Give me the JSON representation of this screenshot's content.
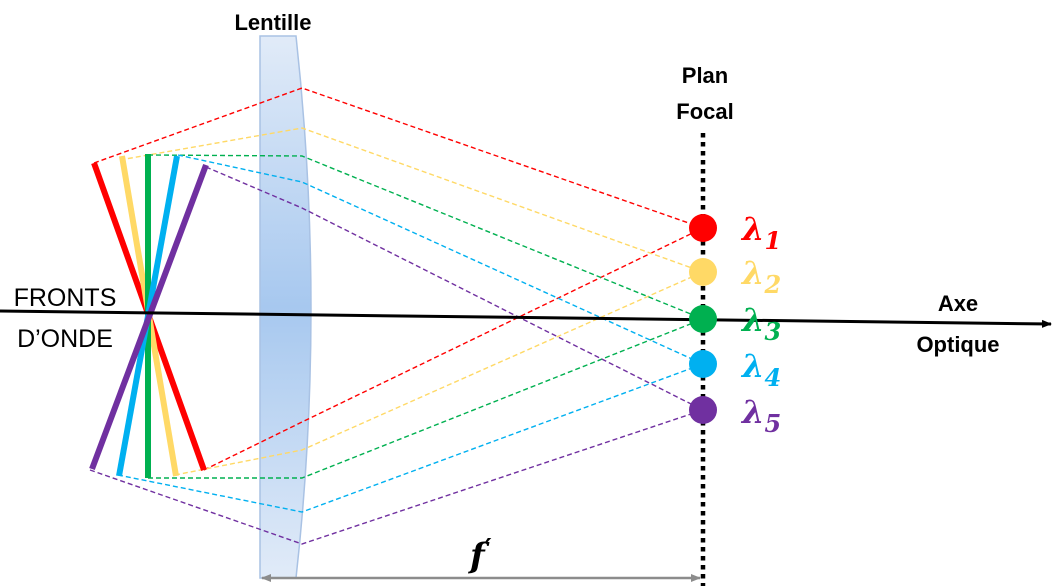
{
  "labels": {
    "lens": "Lentille",
    "focal_plane_line1": "Plan",
    "focal_plane_line2": "Focal",
    "axis_line1": "Axe",
    "axis_line2": "Optique",
    "wavefront_line1": "FRONTS",
    "wavefront_line2": "D’ONDE",
    "focal_length_symbol": "f",
    "focal_length_prime": "′"
  },
  "wavelengths": [
    {
      "symbol": "λ",
      "index": "1",
      "color": "#ff0000"
    },
    {
      "symbol": "λ",
      "index": "2",
      "color": "#ffd966"
    },
    {
      "symbol": "λ",
      "index": "3",
      "color": "#00b050"
    },
    {
      "symbol": "λ",
      "index": "4",
      "color": "#00b0f0"
    },
    {
      "symbol": "λ",
      "index": "5",
      "color": "#7030a0"
    }
  ],
  "colors": {
    "lens_fill": "#bcd3f0",
    "lens_center": "#9fc3ee",
    "axis": "#000000",
    "focal_length_arrow": "#8c8c8c"
  }
}
